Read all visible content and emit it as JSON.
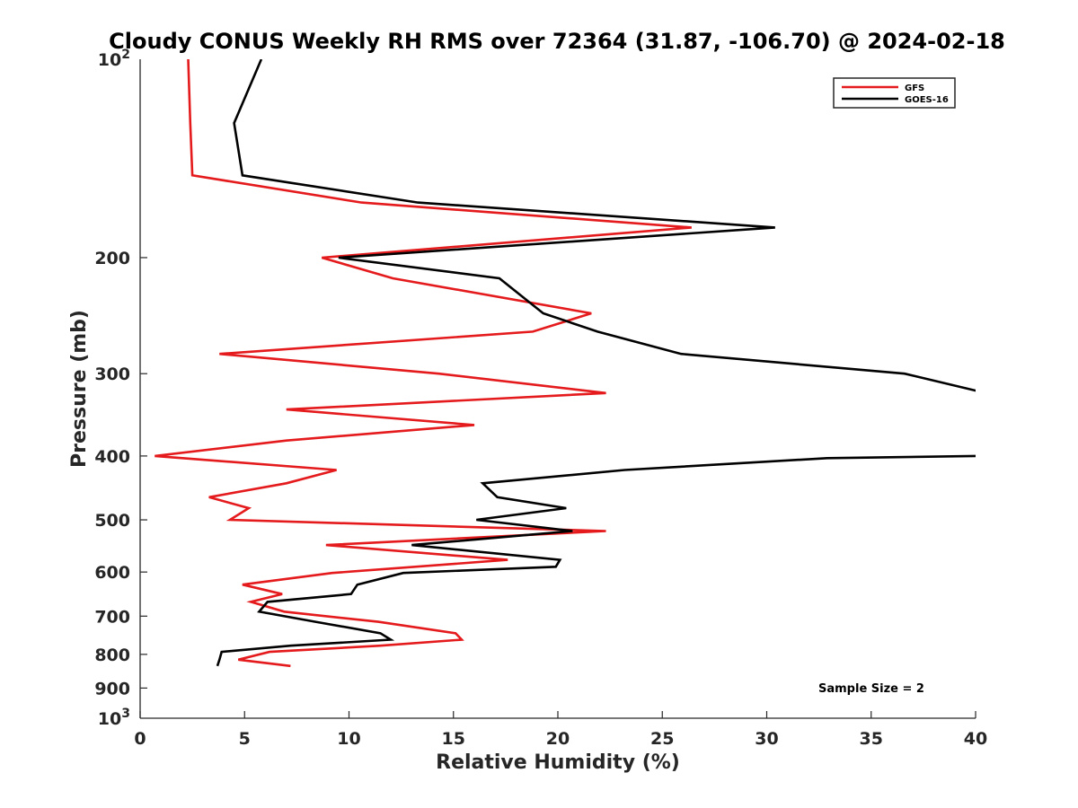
{
  "chart_data": {
    "type": "line",
    "title": "Cloudy CONUS Weekly RH RMS over 72364 (31.87, -106.70) @ 2024-02-18",
    "xlabel": "Relative Humidity (%)",
    "ylabel": "Pressure (mb)",
    "xlim": [
      0,
      40
    ],
    "ylim": [
      100,
      1000
    ],
    "yscale": "log",
    "yreversed": true,
    "grid": false,
    "legend_placement": "top-right",
    "x_ticks": [
      0,
      5,
      10,
      15,
      20,
      25,
      30,
      35,
      40
    ],
    "x_tick_labels": [
      "0",
      "5",
      "10",
      "15",
      "20",
      "25",
      "30",
      "35",
      "40"
    ],
    "y_ticks": [
      200,
      300,
      400,
      500,
      600,
      700,
      800,
      900
    ],
    "y_tick_labels": [
      "200",
      "300",
      "400",
      "500",
      "600",
      "700",
      "800",
      "900"
    ],
    "y_end_labels": [
      {
        "value": 100,
        "base": "10",
        "exp": "2"
      },
      {
        "value": 1000,
        "base": "10",
        "exp": "3"
      }
    ],
    "annotation": "Sample Size = 2",
    "series": [
      {
        "name": "GFS",
        "color": "#e41a1c",
        "points": [
          [
            2.3,
            100
          ],
          [
            2.4,
            125
          ],
          [
            2.5,
            150
          ],
          [
            10.6,
            165
          ],
          [
            26.4,
            180
          ],
          [
            8.7,
            200
          ],
          [
            12.1,
            215
          ],
          [
            21.6,
            243
          ],
          [
            18.8,
            259
          ],
          [
            3.8,
            280
          ],
          [
            14.3,
            300
          ],
          [
            22.3,
            321
          ],
          [
            7.0,
            340
          ],
          [
            16.0,
            359
          ],
          [
            7.0,
            379
          ],
          [
            0.7,
            400
          ],
          [
            9.4,
            420
          ],
          [
            7.0,
            440
          ],
          [
            3.3,
            462
          ],
          [
            5.2,
            480
          ],
          [
            4.3,
            500
          ],
          [
            22.3,
            520
          ],
          [
            8.9,
            546
          ],
          [
            17.6,
            575
          ],
          [
            9.2,
            602
          ],
          [
            4.9,
            627
          ],
          [
            6.8,
            648
          ],
          [
            5.3,
            666
          ],
          [
            6.9,
            689
          ],
          [
            11.4,
            714
          ],
          [
            15.1,
            743
          ],
          [
            15.4,
            760
          ],
          [
            11.5,
            776
          ],
          [
            6.2,
            793
          ],
          [
            4.7,
            815
          ],
          [
            7.2,
            833
          ]
        ]
      },
      {
        "name": "GOES-16",
        "color": "#000000",
        "points": [
          [
            5.8,
            100
          ],
          [
            4.5,
            125
          ],
          [
            4.9,
            150
          ],
          [
            13.3,
            165
          ],
          [
            30.4,
            180
          ],
          [
            9.5,
            200
          ],
          [
            17.2,
            215
          ],
          [
            19.3,
            243
          ],
          [
            21.9,
            259
          ],
          [
            25.9,
            280
          ],
          [
            36.6,
            300
          ],
          [
            40.5,
            321
          ],
          [
            null,
            340
          ],
          [
            40.2,
            400
          ],
          [
            32.9,
            403
          ],
          [
            23.2,
            420
          ],
          [
            16.4,
            440
          ],
          [
            17.1,
            462
          ],
          [
            20.4,
            480
          ],
          [
            16.1,
            500
          ],
          [
            20.7,
            520
          ],
          [
            13.0,
            546
          ],
          [
            20.1,
            575
          ],
          [
            19.9,
            589
          ],
          [
            12.6,
            602
          ],
          [
            10.4,
            627
          ],
          [
            10.1,
            648
          ],
          [
            6.1,
            666
          ],
          [
            5.7,
            689
          ],
          [
            8.4,
            714
          ],
          [
            11.5,
            743
          ],
          [
            12.0,
            760
          ],
          [
            7.2,
            776
          ],
          [
            3.9,
            793
          ],
          [
            3.8,
            815
          ],
          [
            3.7,
            833
          ]
        ]
      }
    ]
  }
}
